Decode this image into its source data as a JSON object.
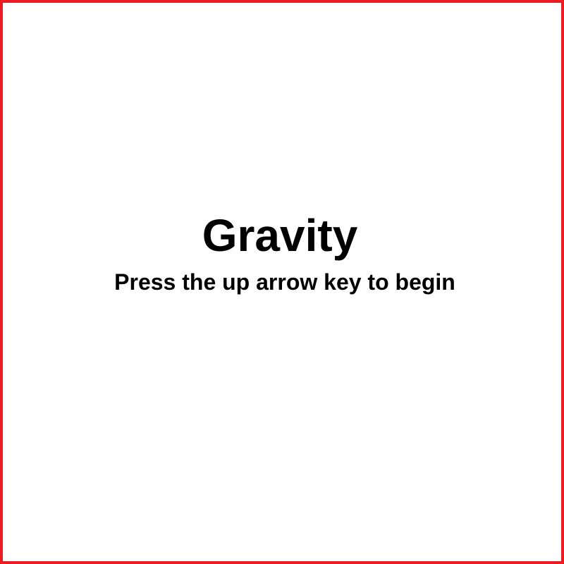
{
  "game": {
    "title": "Gravity",
    "instruction": "Press the up arrow key to begin"
  },
  "colors": {
    "frame_border": "#ed1c24",
    "background": "#ffffff",
    "text": "#000000"
  }
}
